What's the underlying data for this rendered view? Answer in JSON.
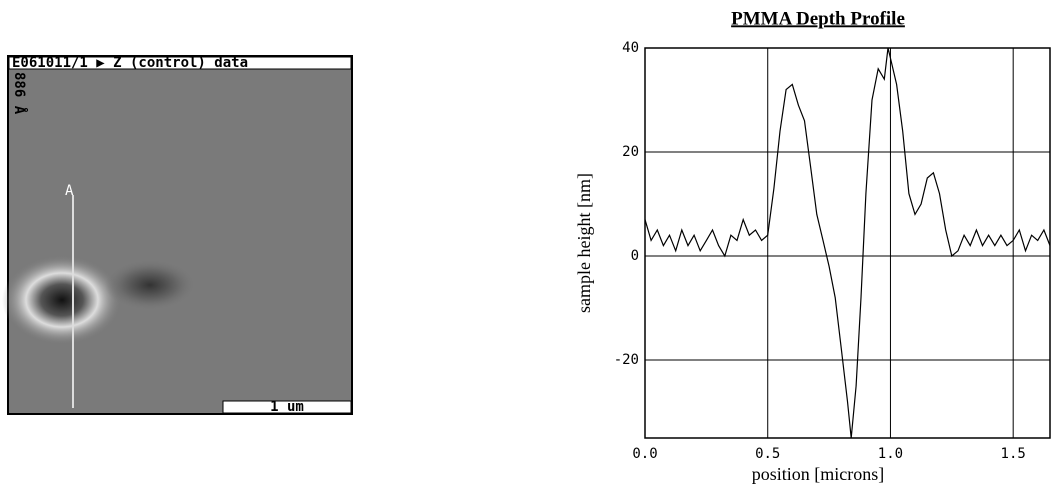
{
  "image": {
    "header": "E061011/1 ▶ Z (control) data",
    "side_label": "886 Å",
    "marker": "A",
    "scale_bar": "1 um"
  },
  "chart_data": {
    "type": "line",
    "title": "PMMA Depth Profile",
    "x_label": "position [microns]",
    "y_label": "sample height [nm]",
    "x": [
      0,
      0.025,
      0.05,
      0.075,
      0.1,
      0.125,
      0.15,
      0.175,
      0.2,
      0.225,
      0.25,
      0.275,
      0.3,
      0.325,
      0.35,
      0.375,
      0.4,
      0.425,
      0.45,
      0.475,
      0.5,
      0.525,
      0.55,
      0.575,
      0.6,
      0.625,
      0.65,
      0.675,
      0.7,
      0.725,
      0.75,
      0.775,
      0.8,
      0.825,
      0.84,
      0.86,
      0.88,
      0.9,
      0.925,
      0.95,
      0.975,
      0.99,
      1.0,
      1.025,
      1.05,
      1.075,
      1.1,
      1.125,
      1.15,
      1.175,
      1.2,
      1.225,
      1.25,
      1.275,
      1.3,
      1.325,
      1.35,
      1.375,
      1.4,
      1.425,
      1.45,
      1.475,
      1.5,
      1.525,
      1.55,
      1.575,
      1.6,
      1.625,
      1.65
    ],
    "values": [
      7,
      3,
      5,
      2,
      4,
      1,
      5,
      2,
      4,
      1,
      3,
      5,
      2,
      0,
      4,
      3,
      7,
      4,
      5,
      3,
      4,
      13,
      24,
      32,
      33,
      29,
      26,
      17,
      8,
      3,
      -2,
      -8,
      -18,
      -28,
      -35,
      -25,
      -8,
      12,
      30,
      36,
      34,
      40,
      38,
      33,
      24,
      12,
      8,
      10,
      15,
      16,
      12,
      5,
      0,
      1,
      4,
      2,
      5,
      2,
      4,
      2,
      4,
      2,
      3,
      5,
      1,
      4,
      3,
      5,
      2
    ],
    "color": "#000000",
    "xlim": [
      0,
      1.65
    ],
    "xticks": [
      {
        "value": 0,
        "label": "0.0"
      },
      0.5,
      {
        "value": 1,
        "label": "1.0"
      },
      1.5
    ],
    "ylim": [
      -35,
      40
    ],
    "yticks": [
      -20,
      0,
      20,
      40
    ],
    "grid": true
  }
}
